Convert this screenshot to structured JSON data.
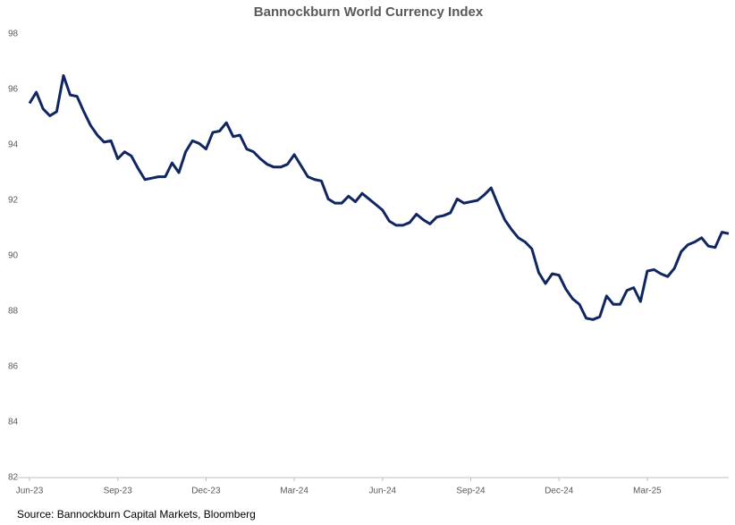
{
  "chart_data": {
    "type": "line",
    "title": "Bannockburn World Currency Index",
    "source": "Source: Bannockburn  Capital  Markets, Bloomberg",
    "color": "#0f2660",
    "categories": [
      "Jun-23",
      null,
      null,
      null,
      null,
      null,
      null,
      null,
      null,
      null,
      null,
      null,
      null,
      "Sep-23",
      null,
      null,
      null,
      null,
      null,
      null,
      null,
      null,
      null,
      null,
      null,
      null,
      "Dec-23",
      null,
      null,
      null,
      null,
      null,
      null,
      null,
      null,
      null,
      null,
      null,
      null,
      "Mar-24",
      null,
      null,
      null,
      null,
      null,
      null,
      null,
      null,
      null,
      null,
      null,
      null,
      "Jun-24",
      null,
      null,
      null,
      null,
      null,
      null,
      null,
      null,
      null,
      null,
      null,
      null,
      "Sep-24",
      null,
      null,
      null,
      null,
      null,
      null,
      null,
      null,
      null,
      null,
      null,
      null,
      "Dec-24",
      null,
      null,
      null,
      null,
      null,
      null,
      null,
      null,
      null,
      null,
      null,
      null,
      "Mar-25",
      null,
      null,
      null,
      null,
      null,
      null,
      null,
      null,
      null,
      null,
      null,
      null
    ],
    "values": [
      95.5,
      95.9,
      95.3,
      95.05,
      95.2,
      96.5,
      95.8,
      95.75,
      95.2,
      94.7,
      94.35,
      94.1,
      94.15,
      93.5,
      93.75,
      93.6,
      93.15,
      92.75,
      92.8,
      92.85,
      92.85,
      93.35,
      93.0,
      93.75,
      94.15,
      94.05,
      93.85,
      94.45,
      94.5,
      94.8,
      94.3,
      94.35,
      93.85,
      93.75,
      93.5,
      93.3,
      93.2,
      93.2,
      93.3,
      93.65,
      93.25,
      92.85,
      92.75,
      92.7,
      92.05,
      91.9,
      91.9,
      92.15,
      91.95,
      92.25,
      92.05,
      91.85,
      91.65,
      91.25,
      91.1,
      91.1,
      91.2,
      91.5,
      91.3,
      91.15,
      91.4,
      91.45,
      91.55,
      92.05,
      91.9,
      91.95,
      92.0,
      92.2,
      92.45,
      91.85,
      91.3,
      90.95,
      90.65,
      90.5,
      90.25,
      89.4,
      89.0,
      89.35,
      89.3,
      88.8,
      88.45,
      88.25,
      87.75,
      87.7,
      87.8,
      88.55,
      88.25,
      88.25,
      88.75,
      88.85,
      88.35,
      89.45,
      89.5,
      89.35,
      89.25,
      89.55,
      90.15,
      90.4,
      90.5,
      90.65,
      90.35,
      90.3,
      90.85,
      90.8
    ],
    "ylim": [
      82,
      98
    ],
    "yticks": [
      82,
      84,
      86,
      88,
      90,
      92,
      94,
      96,
      98
    ],
    "grid": false
  }
}
